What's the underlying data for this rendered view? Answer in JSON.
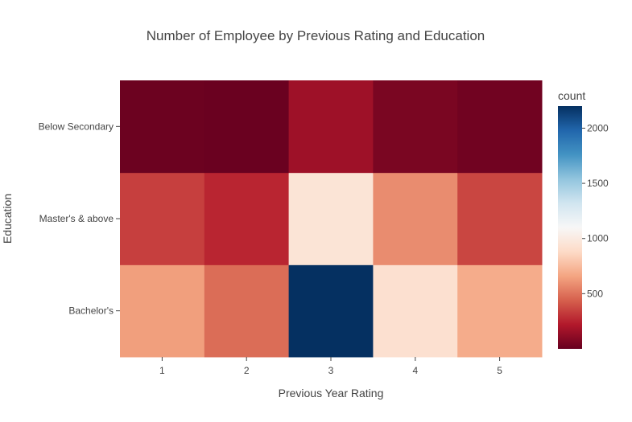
{
  "chart_data": {
    "type": "heatmap",
    "title": "Number of Employee by Previous Rating and Education",
    "xlabel": "Previous Year Rating",
    "ylabel": "Education",
    "x": [
      1,
      2,
      3,
      4,
      5
    ],
    "y": [
      "Bachelor's",
      "Master's & above",
      "Below Secondary"
    ],
    "z": [
      [
        640,
        480,
        2200,
        920,
        690
      ],
      [
        340,
        260,
        950,
        580,
        360
      ],
      [
        15,
        10,
        160,
        55,
        30
      ]
    ],
    "colorbar": {
      "title": "count",
      "range": [
        0,
        2200
      ],
      "ticks": [
        500,
        1000,
        1500,
        2000
      ],
      "colorscale": [
        "#67001f",
        "#b2182b",
        "#d6604d",
        "#f4a582",
        "#fddbc7",
        "#f7f7f7",
        "#d1e5f0",
        "#92c5de",
        "#4393c3",
        "#2166ac",
        "#053061"
      ]
    }
  }
}
